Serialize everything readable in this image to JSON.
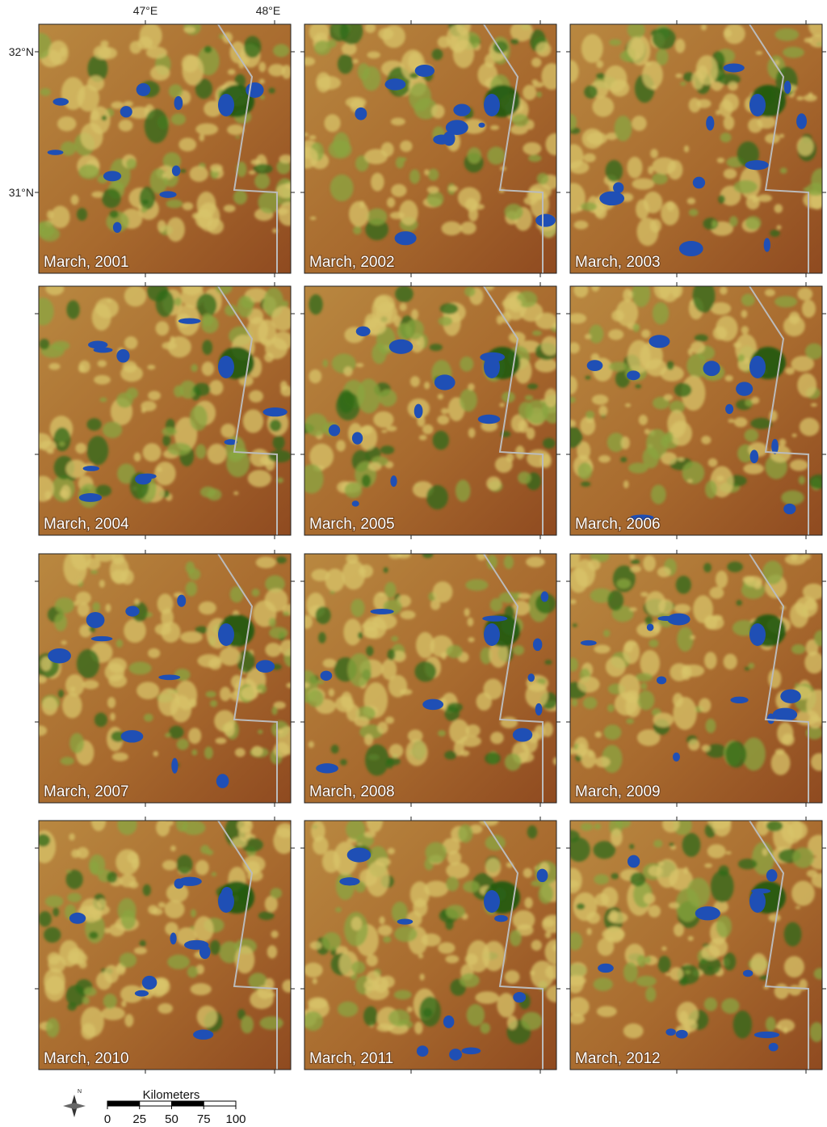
{
  "axes": {
    "lon_labels": [
      "47°E",
      "48°E"
    ],
    "lat_labels": [
      "32°N",
      "31°N"
    ]
  },
  "panels": [
    "March, 2001",
    "March, 2002",
    "March, 2003",
    "March, 2004",
    "March, 2005",
    "March, 2006",
    "March, 2007",
    "March, 2008",
    "March, 2009",
    "March, 2010",
    "March, 2011",
    "March, 2012"
  ],
  "compass": "N",
  "scale_bar": {
    "title": "Kilometers",
    "ticks": [
      0,
      25,
      50,
      75,
      100
    ]
  }
}
